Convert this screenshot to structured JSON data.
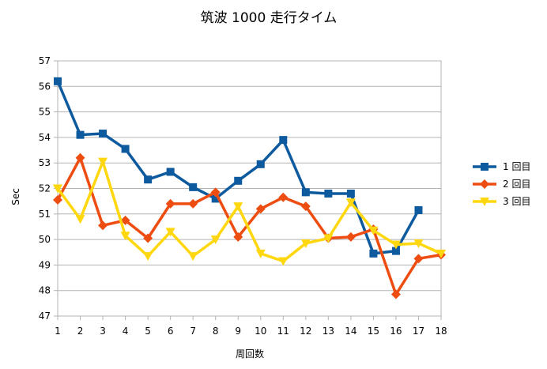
{
  "chart_data": {
    "type": "line",
    "title": "筑波 1000  走行タイム",
    "xlabel": "周回数",
    "ylabel": "Sec",
    "x": [
      1,
      2,
      3,
      4,
      5,
      6,
      7,
      8,
      9,
      10,
      11,
      12,
      13,
      14,
      15,
      16,
      17,
      18
    ],
    "ylim": [
      47,
      57
    ],
    "yticks": [
      47,
      48,
      49,
      50,
      51,
      52,
      53,
      54,
      55,
      56,
      57
    ],
    "grid": true,
    "legend_position": "right",
    "series": [
      {
        "name": "1 回目",
        "color": "#0d5a9e",
        "marker": "square",
        "values": [
          56.2,
          54.1,
          54.15,
          53.55,
          52.35,
          52.65,
          52.05,
          51.6,
          52.3,
          52.95,
          53.9,
          51.85,
          51.8,
          51.8,
          49.45,
          49.55,
          51.15,
          null
        ]
      },
      {
        "name": "2 回目",
        "color": "#ee4d12",
        "marker": "diamond",
        "values": [
          51.55,
          53.2,
          50.55,
          50.75,
          50.05,
          51.4,
          51.4,
          51.85,
          50.1,
          51.2,
          51.65,
          51.3,
          50.05,
          50.1,
          50.4,
          47.85,
          49.25,
          49.4
        ]
      },
      {
        "name": "3 回目",
        "color": "#ffd70f",
        "marker": "triangle-down",
        "values": [
          52.0,
          50.8,
          53.05,
          50.15,
          49.35,
          50.3,
          49.35,
          50.0,
          51.3,
          49.45,
          49.15,
          49.85,
          50.05,
          51.45,
          50.35,
          49.8,
          49.85,
          49.45
        ]
      }
    ]
  }
}
